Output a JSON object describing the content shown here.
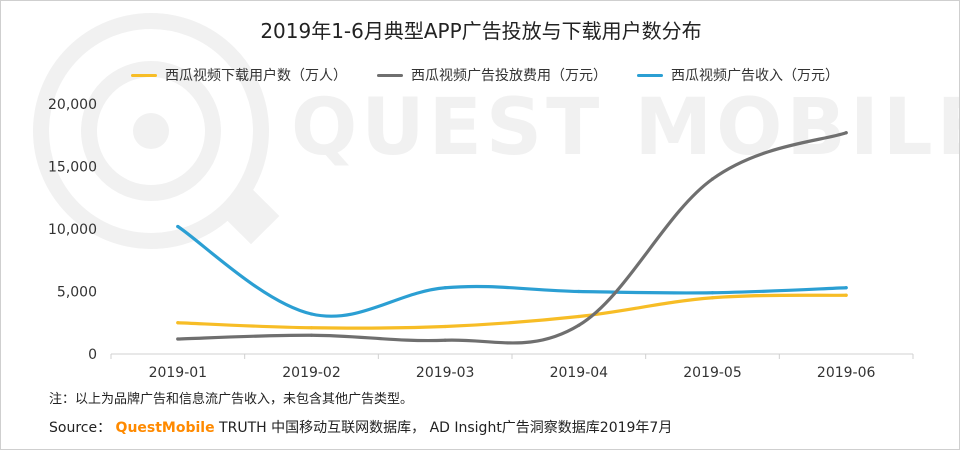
{
  "colors": {
    "downloads": "#f7bd26",
    "ad_spend": "#6f6f6f",
    "ad_revenue": "#2b9fd3",
    "watermark": "#f1f1f1",
    "brand": "#ff8a00"
  },
  "watermark": {
    "text": "QUEST MOBILE"
  },
  "chart_data": {
    "type": "line",
    "title": "2019年1-6月典型APP广告投放与下载用户数分布",
    "categories": [
      "2019-01",
      "2019-02",
      "2019-03",
      "2019-04",
      "2019-05",
      "2019-06"
    ],
    "ylim": [
      0,
      20000
    ],
    "yticks": [
      0,
      5000,
      10000,
      15000,
      20000
    ],
    "ytick_labels": [
      "0",
      "5,000",
      "10,000",
      "15,000",
      "20,000"
    ],
    "grid": false,
    "legend_position": "top",
    "series": [
      {
        "name": "西瓜视频下载用户数（万人）",
        "color_key": "downloads",
        "values": [
          2500,
          2100,
          2200,
          3000,
          4500,
          4700
        ]
      },
      {
        "name": "西瓜视频广告投放费用（万元）",
        "color_key": "ad_spend",
        "values": [
          1200,
          1500,
          1100,
          2300,
          14000,
          17700
        ]
      },
      {
        "name": "西瓜视频广告收入（万元）",
        "color_key": "ad_revenue",
        "values": [
          10200,
          3200,
          5300,
          5000,
          4900,
          5300
        ]
      }
    ]
  },
  "note": "注：以上为品牌广告和信息流广告收入，未包含其他广告类型。",
  "source": {
    "prefix": "Source： ",
    "brand": "QuestMobile",
    "rest": " TRUTH 中国移动互联网数据库， AD Insight广告洞察数据库2019年7月"
  }
}
